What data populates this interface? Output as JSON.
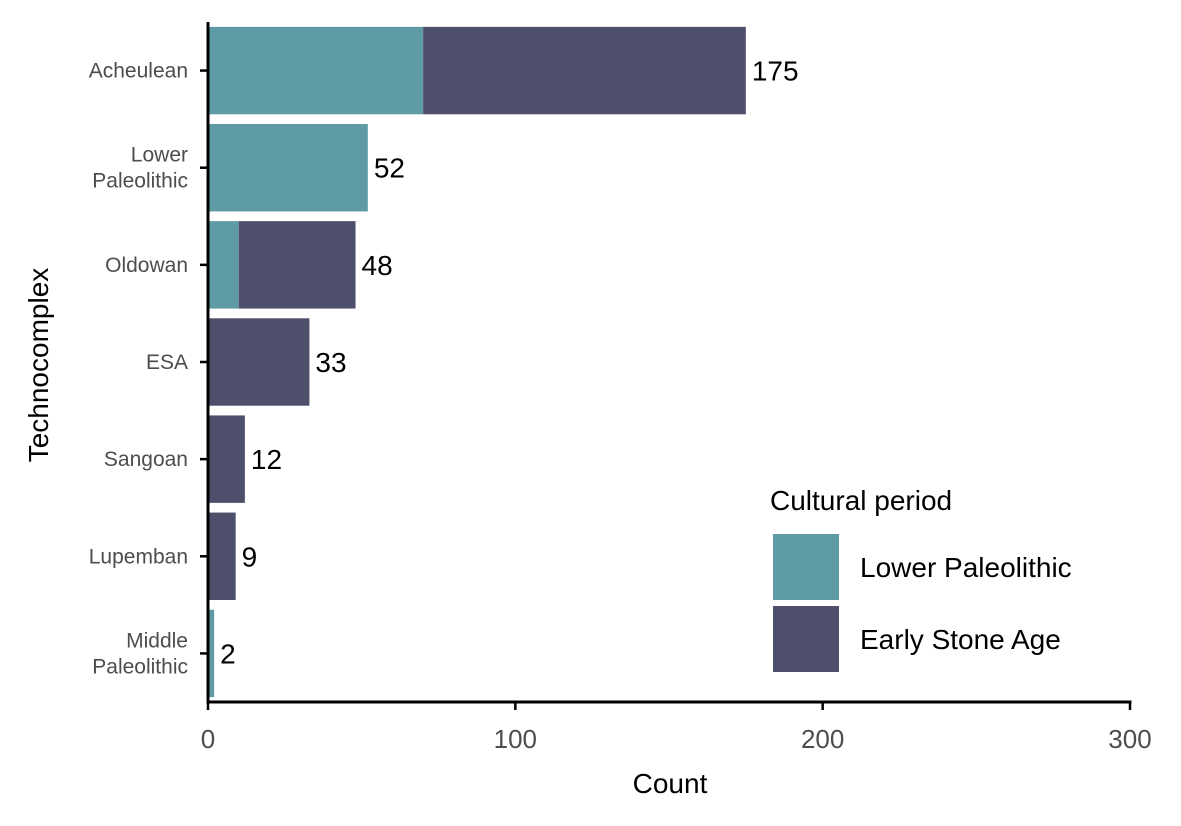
{
  "chart_data": {
    "type": "bar",
    "orientation": "horizontal",
    "stacked": true,
    "categories": [
      "Acheulean",
      "Lower\nPaleolithic",
      "Oldowan",
      "ESA",
      "Sangoan",
      "Lupemban",
      "Middle\nPaleolithic"
    ],
    "series": [
      {
        "name": "Lower Paleolithic",
        "color": "#5f9ba4",
        "values": [
          70,
          52,
          10,
          0,
          0,
          0,
          2
        ]
      },
      {
        "name": "Early Stone Age",
        "color": "#4e4f6b",
        "values": [
          105,
          0,
          38,
          33,
          12,
          9,
          0
        ]
      }
    ],
    "totals": [
      "175",
      "52",
      "48",
      "33",
      "12",
      "9",
      "2"
    ],
    "xlabel": "Count",
    "ylabel": "Technocomplex",
    "xlim": [
      0,
      300
    ],
    "xticks": [
      "0",
      "100",
      "200",
      "300"
    ],
    "xtick_values": [
      0,
      100,
      200,
      300
    ],
    "grid": false,
    "legend": {
      "title": "Cultural period",
      "position": "bottom-right"
    }
  }
}
